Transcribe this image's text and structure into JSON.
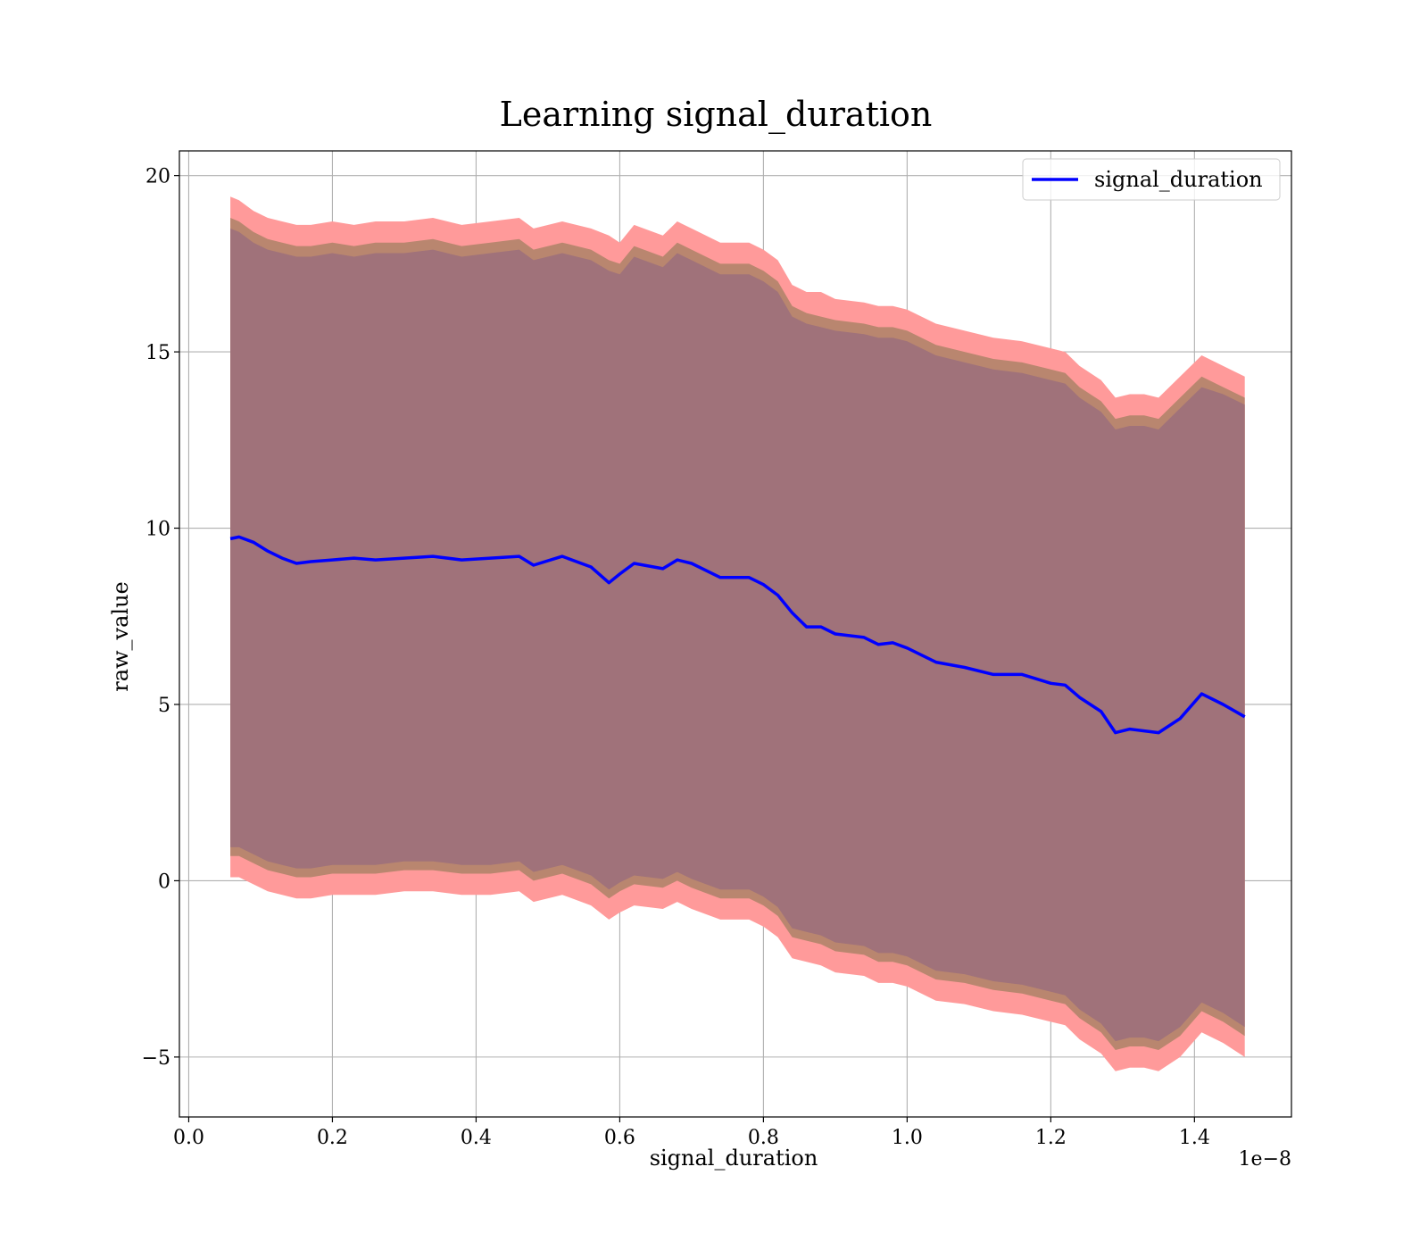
{
  "chart_data": {
    "type": "line",
    "title": "Learning signal_duration",
    "xlabel": "signal_duration",
    "ylabel": "raw_value",
    "x_offset_label": "1e−8",
    "xlim": [
      -0.013,
      1.535
    ],
    "ylim": [
      -6.7,
      20.7
    ],
    "x_ticks": [
      0.0,
      0.2,
      0.4,
      0.6,
      0.8,
      1.0,
      1.2,
      1.4
    ],
    "x_tick_labels": [
      "0.0",
      "0.2",
      "0.4",
      "0.6",
      "0.8",
      "1.0",
      "1.2",
      "1.4"
    ],
    "y_ticks": [
      -5,
      0,
      5,
      10,
      15,
      20
    ],
    "y_tick_labels": [
      "−5",
      "0",
      "5",
      "10",
      "15",
      "20"
    ],
    "grid": true,
    "legend": {
      "position": "top-right"
    },
    "colors": {
      "line": "#0000ff",
      "outer_band": "#ff9a9a",
      "middle_band": "#b9866f",
      "inner_band": "#a0727a"
    },
    "series": [
      {
        "name": "signal_duration",
        "x": [
          0.058,
          0.07,
          0.09,
          0.11,
          0.13,
          0.15,
          0.17,
          0.2,
          0.23,
          0.26,
          0.3,
          0.34,
          0.38,
          0.42,
          0.46,
          0.48,
          0.52,
          0.56,
          0.585,
          0.6,
          0.62,
          0.66,
          0.68,
          0.7,
          0.74,
          0.78,
          0.8,
          0.82,
          0.84,
          0.86,
          0.88,
          0.9,
          0.94,
          0.96,
          0.98,
          1.0,
          1.04,
          1.08,
          1.12,
          1.16,
          1.2,
          1.22,
          1.24,
          1.27,
          1.29,
          1.31,
          1.33,
          1.35,
          1.38,
          1.41,
          1.44,
          1.47
        ],
        "y": [
          9.7,
          9.75,
          9.6,
          9.35,
          9.15,
          9.0,
          9.05,
          9.1,
          9.15,
          9.1,
          9.15,
          9.2,
          9.1,
          9.15,
          9.2,
          8.95,
          9.2,
          8.9,
          8.45,
          8.7,
          9.0,
          8.85,
          9.1,
          9.0,
          8.6,
          8.6,
          8.4,
          8.1,
          7.6,
          7.2,
          7.2,
          7.0,
          6.9,
          6.7,
          6.75,
          6.6,
          6.2,
          6.05,
          5.85,
          5.85,
          5.6,
          5.55,
          5.2,
          4.8,
          4.2,
          4.3,
          4.25,
          4.2,
          4.6,
          5.3,
          5.0,
          4.65
        ]
      }
    ],
    "bands": {
      "outer_upper": [
        19.4,
        19.3,
        19.0,
        18.8,
        18.7,
        18.6,
        18.6,
        18.7,
        18.6,
        18.7,
        18.7,
        18.8,
        18.6,
        18.7,
        18.8,
        18.5,
        18.7,
        18.5,
        18.3,
        18.1,
        18.6,
        18.3,
        18.7,
        18.5,
        18.1,
        18.1,
        17.9,
        17.6,
        16.9,
        16.7,
        16.7,
        16.5,
        16.4,
        16.3,
        16.3,
        16.2,
        15.8,
        15.6,
        15.4,
        15.3,
        15.1,
        15.0,
        14.6,
        14.2,
        13.7,
        13.8,
        13.8,
        13.7,
        14.3,
        14.9,
        14.6,
        14.3
      ],
      "outer_lower": [
        0.1,
        0.1,
        -0.1,
        -0.3,
        -0.4,
        -0.5,
        -0.5,
        -0.4,
        -0.4,
        -0.4,
        -0.3,
        -0.3,
        -0.4,
        -0.4,
        -0.3,
        -0.6,
        -0.4,
        -0.7,
        -1.1,
        -0.9,
        -0.7,
        -0.8,
        -0.6,
        -0.8,
        -1.1,
        -1.1,
        -1.3,
        -1.6,
        -2.2,
        -2.3,
        -2.4,
        -2.6,
        -2.7,
        -2.9,
        -2.9,
        -3.0,
        -3.4,
        -3.5,
        -3.7,
        -3.8,
        -4.0,
        -4.1,
        -4.5,
        -4.9,
        -5.4,
        -5.3,
        -5.3,
        -5.4,
        -5.0,
        -4.3,
        -4.6,
        -5.0
      ],
      "middle_upper": [
        18.8,
        18.7,
        18.4,
        18.2,
        18.1,
        18.0,
        18.0,
        18.1,
        18.0,
        18.1,
        18.1,
        18.2,
        18.0,
        18.1,
        18.2,
        17.9,
        18.1,
        17.9,
        17.6,
        17.5,
        18.0,
        17.7,
        18.1,
        17.9,
        17.5,
        17.5,
        17.3,
        17.0,
        16.3,
        16.1,
        16.0,
        15.9,
        15.8,
        15.7,
        15.7,
        15.6,
        15.2,
        15.0,
        14.8,
        14.7,
        14.5,
        14.4,
        14.0,
        13.6,
        13.1,
        13.2,
        13.2,
        13.1,
        13.7,
        14.3,
        14.0,
        13.7
      ],
      "middle_lower": [
        0.7,
        0.7,
        0.5,
        0.3,
        0.2,
        0.1,
        0.1,
        0.2,
        0.2,
        0.2,
        0.3,
        0.3,
        0.2,
        0.2,
        0.3,
        0.0,
        0.2,
        -0.1,
        -0.5,
        -0.3,
        -0.1,
        -0.2,
        0.0,
        -0.2,
        -0.5,
        -0.5,
        -0.7,
        -1.0,
        -1.6,
        -1.7,
        -1.8,
        -2.0,
        -2.1,
        -2.3,
        -2.3,
        -2.4,
        -2.8,
        -2.9,
        -3.1,
        -3.2,
        -3.4,
        -3.5,
        -3.9,
        -4.3,
        -4.8,
        -4.7,
        -4.7,
        -4.8,
        -4.4,
        -3.7,
        -4.0,
        -4.4
      ],
      "inner_upper": [
        18.5,
        18.4,
        18.1,
        17.9,
        17.8,
        17.7,
        17.7,
        17.8,
        17.7,
        17.8,
        17.8,
        17.9,
        17.7,
        17.8,
        17.9,
        17.6,
        17.8,
        17.6,
        17.3,
        17.2,
        17.7,
        17.4,
        17.8,
        17.6,
        17.2,
        17.2,
        17.0,
        16.7,
        16.0,
        15.8,
        15.7,
        15.6,
        15.5,
        15.4,
        15.4,
        15.3,
        14.9,
        14.7,
        14.5,
        14.4,
        14.2,
        14.1,
        13.7,
        13.3,
        12.8,
        12.9,
        12.9,
        12.8,
        13.4,
        14.0,
        13.8,
        13.5
      ],
      "inner_lower": [
        0.95,
        0.95,
        0.75,
        0.55,
        0.45,
        0.35,
        0.35,
        0.45,
        0.45,
        0.45,
        0.55,
        0.55,
        0.45,
        0.45,
        0.55,
        0.25,
        0.45,
        0.15,
        -0.25,
        -0.05,
        0.15,
        0.05,
        0.25,
        0.05,
        -0.25,
        -0.25,
        -0.45,
        -0.75,
        -1.35,
        -1.45,
        -1.55,
        -1.75,
        -1.85,
        -2.05,
        -2.05,
        -2.15,
        -2.55,
        -2.65,
        -2.85,
        -2.95,
        -3.15,
        -3.25,
        -3.65,
        -4.05,
        -4.55,
        -4.45,
        -4.45,
        -4.55,
        -4.15,
        -3.45,
        -3.75,
        -4.15
      ]
    }
  }
}
